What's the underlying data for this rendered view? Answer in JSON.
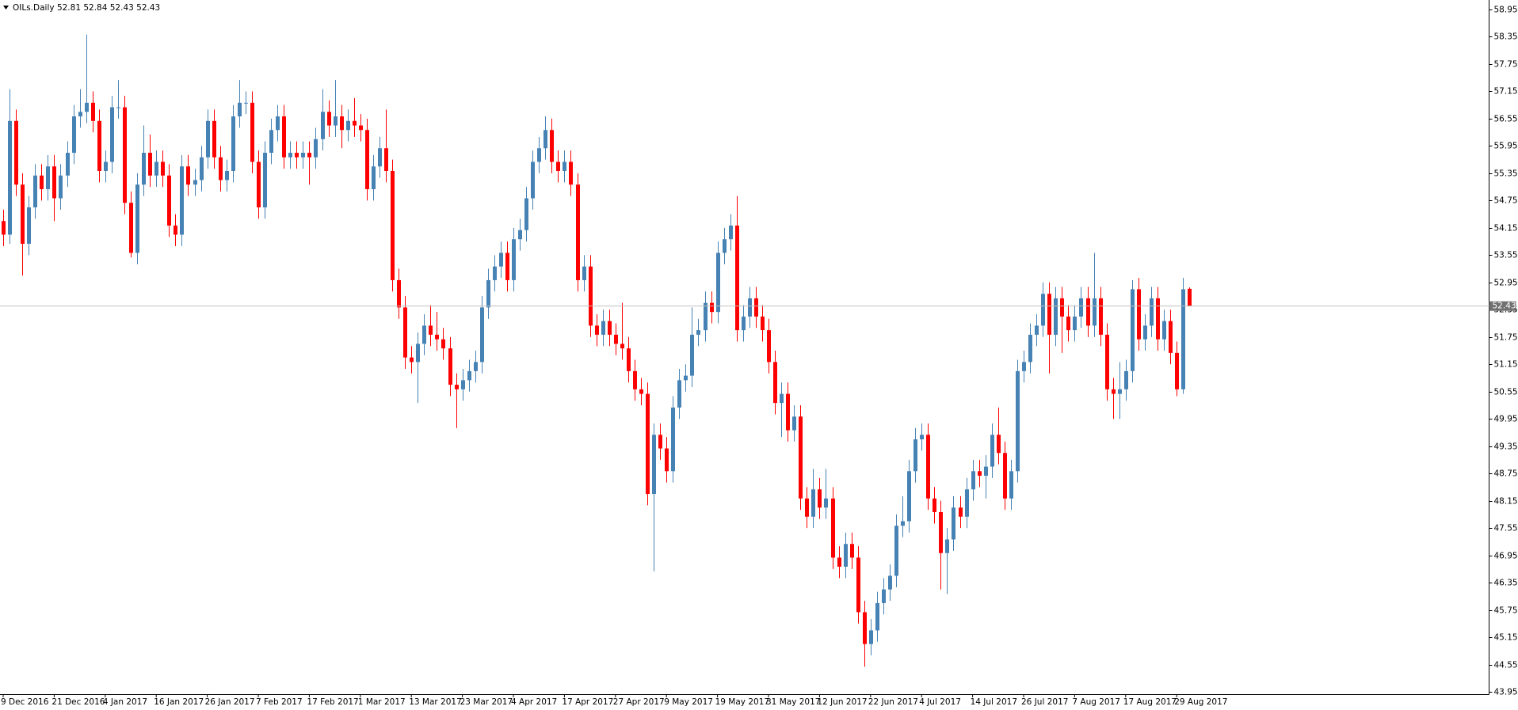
{
  "chart_data": {
    "type": "candlestick",
    "title": "OILs.Daily",
    "up_color": "#4682b4",
    "down_color": "#ff0000",
    "grid": false,
    "categories": [
      "9 Dec 2016",
      null,
      null,
      null,
      null,
      null,
      null,
      null,
      "21 Dec 2016",
      null,
      null,
      null,
      null,
      null,
      null,
      null,
      "4 Jan 2017",
      null,
      null,
      null,
      null,
      null,
      null,
      null,
      "16 Jan 2017",
      null,
      null,
      null,
      null,
      null,
      null,
      null,
      "26 Jan 2017",
      null,
      null,
      null,
      null,
      null,
      null,
      null,
      "7 Feb 2017",
      null,
      null,
      null,
      null,
      null,
      null,
      null,
      "17 Feb 2017",
      null,
      null,
      null,
      null,
      null,
      null,
      null,
      "1 Mar 2017",
      null,
      null,
      null,
      null,
      null,
      null,
      null,
      "13 Mar 2017",
      null,
      null,
      null,
      null,
      null,
      null,
      null,
      "23 Mar 2017",
      null,
      null,
      null,
      null,
      null,
      null,
      null,
      "4 Apr 2017",
      null,
      null,
      null,
      null,
      null,
      null,
      null,
      "17 Apr 2017",
      null,
      null,
      null,
      null,
      null,
      null,
      null,
      "27 Apr 2017",
      null,
      null,
      null,
      null,
      null,
      null,
      null,
      "9 May 2017",
      null,
      null,
      null,
      null,
      null,
      null,
      null,
      "19 May 2017",
      null,
      null,
      null,
      null,
      null,
      null,
      null,
      "31 May 2017",
      null,
      null,
      null,
      null,
      null,
      null,
      null,
      "12 Jun 2017",
      null,
      null,
      null,
      null,
      null,
      null,
      null,
      "22 Jun 2017",
      null,
      null,
      null,
      null,
      null,
      null,
      null,
      "4 Jul 2017",
      null,
      null,
      null,
      null,
      null,
      null,
      null,
      "14 Jul 2017",
      null,
      null,
      null,
      null,
      null,
      null,
      null,
      "26 Jul 2017",
      null,
      null,
      null,
      null,
      null,
      null,
      null,
      "7 Aug 2017",
      null,
      null,
      null,
      null,
      null,
      null,
      null,
      "17 Aug 2017",
      null,
      null,
      null,
      null,
      null,
      null,
      null,
      "29 Aug 2017",
      null,
      null
    ],
    "open": [
      54.3,
      54.0,
      56.5,
      55.1,
      53.8,
      54.6,
      55.3,
      55.0,
      55.5,
      54.8,
      55.3,
      55.8,
      56.6,
      56.7,
      56.9,
      56.5,
      55.4,
      55.6,
      56.8,
      56.8,
      54.7,
      53.6,
      55.1,
      55.8,
      55.3,
      55.6,
      55.3,
      54.2,
      54.0,
      55.5,
      55.1,
      55.2,
      55.7,
      56.5,
      55.7,
      55.2,
      55.4,
      56.6,
      56.9,
      56.9,
      55.6,
      54.6,
      55.8,
      56.3,
      56.6,
      55.7,
      55.8,
      55.7,
      55.8,
      55.7,
      56.1,
      56.7,
      56.4,
      56.6,
      56.3,
      56.5,
      56.4,
      56.3,
      55.0,
      55.5,
      55.9,
      55.4,
      53.0,
      52.4,
      51.3,
      51.2,
      51.6,
      52.0,
      51.8,
      51.7,
      51.5,
      50.7,
      50.6,
      50.8,
      51.0,
      51.2,
      52.4,
      53.0,
      53.3,
      53.6,
      53.0,
      53.9,
      54.1,
      54.8,
      55.6,
      55.9,
      56.3,
      55.6,
      55.4,
      55.6,
      55.1,
      53.0,
      53.3,
      52.0,
      51.8,
      52.1,
      51.8,
      51.6,
      51.5,
      51.0,
      50.6,
      50.5,
      48.3,
      49.6,
      49.3,
      48.8,
      50.2,
      50.8,
      50.9,
      51.8,
      51.9,
      52.5,
      52.3,
      53.6,
      53.9,
      54.2,
      51.9,
      52.2,
      52.6,
      52.2,
      51.9,
      51.2,
      50.3,
      50.5,
      49.7,
      50.0,
      48.2,
      47.8,
      48.4,
      48.0,
      48.2,
      46.9,
      46.7,
      47.2,
      46.9,
      45.7,
      45.0,
      45.3,
      45.9,
      46.2,
      46.5,
      47.6,
      47.7,
      48.8,
      49.5,
      49.6,
      48.2,
      47.9,
      47.0,
      47.3,
      48.0,
      47.8,
      48.4,
      48.8,
      48.7,
      48.9,
      49.6,
      49.2,
      48.2,
      48.8,
      51.0,
      51.2,
      51.8,
      52.0,
      52.7,
      51.8,
      52.6,
      52.2,
      51.9,
      52.2,
      52.6,
      52.0,
      52.6,
      51.8,
      50.6,
      50.5,
      50.6,
      51.0,
      52.8,
      51.7,
      52.0,
      52.6,
      51.7,
      52.1,
      51.4,
      50.6,
      52.81
    ],
    "high": [
      54.55,
      57.2,
      56.75,
      55.35,
      54.85,
      55.55,
      55.55,
      55.75,
      55.75,
      55.55,
      56.05,
      56.85,
      57.2,
      58.4,
      57.15,
      56.75,
      55.85,
      57.05,
      57.4,
      57.05,
      54.95,
      55.35,
      56.4,
      56.2,
      55.85,
      55.85,
      55.55,
      54.45,
      55.75,
      55.75,
      55.45,
      55.95,
      56.75,
      56.75,
      55.95,
      55.65,
      56.85,
      57.4,
      57.15,
      57.15,
      55.85,
      56.05,
      56.55,
      56.85,
      56.85,
      56.05,
      56.05,
      56.05,
      56.05,
      56.35,
      57.2,
      56.95,
      57.4,
      56.85,
      56.75,
      57.0,
      56.65,
      56.55,
      55.75,
      56.15,
      56.75,
      55.65,
      53.25,
      52.65,
      51.55,
      51.85,
      52.25,
      52.45,
      52.3,
      51.95,
      51.75,
      50.95,
      51.05,
      51.25,
      51.45,
      52.65,
      53.25,
      53.55,
      53.85,
      53.85,
      54.15,
      54.35,
      55.05,
      55.85,
      56.15,
      56.6,
      56.55,
      55.85,
      55.85,
      55.85,
      55.35,
      53.55,
      53.55,
      52.25,
      52.35,
      52.35,
      52.05,
      52.5,
      51.75,
      51.25,
      50.85,
      50.75,
      49.85,
      49.85,
      49.55,
      50.45,
      51.05,
      51.15,
      52.4,
      52.15,
      52.75,
      52.75,
      53.85,
      54.15,
      54.45,
      54.85,
      52.45,
      52.85,
      52.85,
      52.45,
      52.15,
      51.45,
      50.75,
      50.75,
      50.25,
      50.25,
      48.45,
      48.85,
      48.65,
      48.85,
      48.45,
      47.15,
      47.45,
      47.45,
      47.15,
      45.95,
      45.55,
      46.15,
      46.45,
      46.75,
      47.85,
      48.25,
      49.05,
      49.75,
      49.85,
      49.85,
      48.45,
      48.15,
      47.55,
      48.25,
      48.25,
      48.65,
      49.05,
      49.05,
      49.15,
      49.85,
      50.2,
      49.45,
      49.05,
      51.25,
      51.45,
      52.05,
      52.25,
      52.95,
      52.95,
      52.85,
      52.85,
      52.45,
      52.45,
      52.85,
      52.85,
      53.6,
      52.85,
      52.05,
      50.85,
      51.2,
      51.25,
      53.0,
      53.05,
      52.25,
      52.85,
      52.85,
      52.35,
      52.35,
      51.65,
      53.05,
      52.84
    ],
    "low": [
      53.75,
      53.8,
      54.85,
      53.1,
      53.55,
      54.35,
      54.75,
      54.75,
      54.3,
      54.55,
      55.05,
      55.55,
      56.35,
      56.45,
      56.25,
      55.15,
      55.15,
      55.35,
      56.55,
      54.45,
      53.5,
      53.35,
      54.85,
      55.05,
      55.05,
      55.05,
      53.95,
      53.75,
      53.75,
      54.85,
      54.85,
      54.95,
      55.45,
      55.45,
      54.95,
      54.95,
      55.15,
      56.35,
      56.65,
      55.35,
      54.35,
      54.35,
      55.55,
      56.05,
      55.45,
      55.45,
      55.45,
      55.45,
      55.1,
      55.45,
      55.85,
      56.15,
      56.15,
      55.9,
      56.05,
      56.15,
      56.05,
      54.75,
      54.75,
      55.25,
      55.15,
      52.75,
      52.15,
      51.05,
      50.95,
      50.3,
      51.35,
      51.55,
      51.45,
      51.25,
      50.45,
      49.75,
      50.35,
      50.55,
      50.75,
      50.95,
      52.15,
      52.75,
      53.05,
      52.75,
      52.75,
      53.65,
      53.85,
      54.55,
      55.35,
      55.65,
      55.35,
      55.15,
      55.15,
      54.85,
      52.75,
      52.75,
      51.75,
      51.55,
      51.55,
      51.55,
      51.35,
      51.25,
      50.75,
      50.35,
      50.25,
      48.05,
      46.6,
      49.05,
      48.55,
      48.55,
      49.95,
      50.55,
      50.65,
      51.55,
      51.65,
      52.05,
      52.05,
      53.35,
      53.65,
      51.65,
      51.65,
      51.95,
      51.95,
      51.65,
      50.95,
      50.05,
      49.55,
      49.45,
      49.45,
      47.95,
      47.55,
      47.55,
      47.75,
      47.75,
      46.65,
      46.45,
      46.45,
      46.65,
      45.45,
      44.5,
      44.75,
      45.05,
      45.65,
      45.95,
      46.25,
      47.35,
      47.45,
      48.55,
      49.25,
      47.95,
      47.65,
      46.2,
      46.1,
      47.05,
      47.55,
      47.55,
      48.15,
      48.45,
      48.2,
      48.65,
      48.95,
      47.95,
      47.95,
      48.55,
      50.75,
      50.95,
      51.55,
      51.75,
      50.95,
      51.55,
      51.4,
      51.65,
      51.65,
      51.95,
      51.75,
      51.75,
      51.55,
      50.35,
      49.95,
      49.95,
      50.35,
      50.75,
      51.45,
      51.45,
      51.75,
      51.45,
      51.45,
      51.15,
      50.45,
      50.5,
      52.43
    ],
    "close": [
      54.0,
      56.5,
      55.1,
      53.8,
      54.6,
      55.3,
      55.0,
      55.5,
      54.8,
      55.3,
      55.8,
      56.6,
      56.7,
      56.9,
      56.5,
      55.4,
      55.6,
      56.8,
      56.8,
      54.7,
      53.6,
      55.1,
      55.8,
      55.3,
      55.6,
      55.3,
      54.2,
      54.0,
      55.5,
      55.1,
      55.2,
      55.7,
      56.5,
      55.7,
      55.2,
      55.4,
      56.6,
      56.9,
      56.9,
      55.6,
      54.6,
      55.8,
      56.3,
      56.6,
      55.7,
      55.8,
      55.7,
      55.8,
      55.7,
      56.1,
      56.7,
      56.4,
      56.6,
      56.3,
      56.5,
      56.4,
      56.3,
      55.0,
      55.5,
      55.9,
      55.4,
      53.0,
      52.4,
      51.3,
      51.2,
      51.6,
      52.0,
      51.8,
      51.7,
      51.5,
      50.7,
      50.6,
      50.8,
      51.0,
      51.2,
      52.4,
      53.0,
      53.3,
      53.6,
      53.0,
      53.9,
      54.1,
      54.8,
      55.6,
      55.9,
      56.3,
      55.6,
      55.4,
      55.6,
      55.1,
      53.0,
      53.3,
      52.0,
      51.8,
      52.1,
      51.8,
      51.6,
      51.5,
      51.0,
      50.6,
      50.5,
      48.3,
      49.6,
      49.3,
      48.8,
      50.2,
      50.8,
      50.9,
      51.8,
      51.9,
      52.5,
      52.3,
      53.6,
      53.9,
      54.2,
      51.9,
      52.2,
      52.6,
      52.2,
      51.9,
      51.2,
      50.3,
      50.5,
      49.7,
      50.0,
      48.2,
      47.8,
      48.4,
      48.0,
      48.2,
      46.9,
      46.7,
      47.2,
      46.9,
      45.7,
      45.0,
      45.3,
      45.9,
      46.2,
      46.5,
      47.6,
      47.7,
      48.8,
      49.5,
      49.6,
      48.2,
      47.9,
      47.0,
      47.3,
      48.0,
      47.8,
      48.4,
      48.8,
      48.7,
      48.9,
      49.6,
      49.2,
      48.2,
      48.8,
      51.0,
      51.2,
      51.8,
      52.0,
      52.7,
      51.8,
      52.6,
      52.2,
      51.9,
      52.2,
      52.6,
      52.0,
      52.6,
      51.8,
      50.6,
      50.5,
      50.6,
      51.0,
      52.8,
      51.7,
      52.0,
      52.6,
      51.7,
      52.1,
      51.4,
      50.6,
      52.8,
      52.43
    ],
    "ylim": [
      43.95,
      58.95
    ],
    "yticks": [
      58.95,
      58.35,
      57.75,
      57.15,
      56.55,
      55.95,
      55.35,
      54.75,
      54.15,
      53.55,
      52.95,
      52.35,
      51.75,
      51.15,
      50.55,
      49.95,
      49.35,
      48.75,
      48.15,
      47.55,
      46.95,
      46.35,
      45.75,
      45.15,
      44.55,
      43.95
    ]
  }
}
